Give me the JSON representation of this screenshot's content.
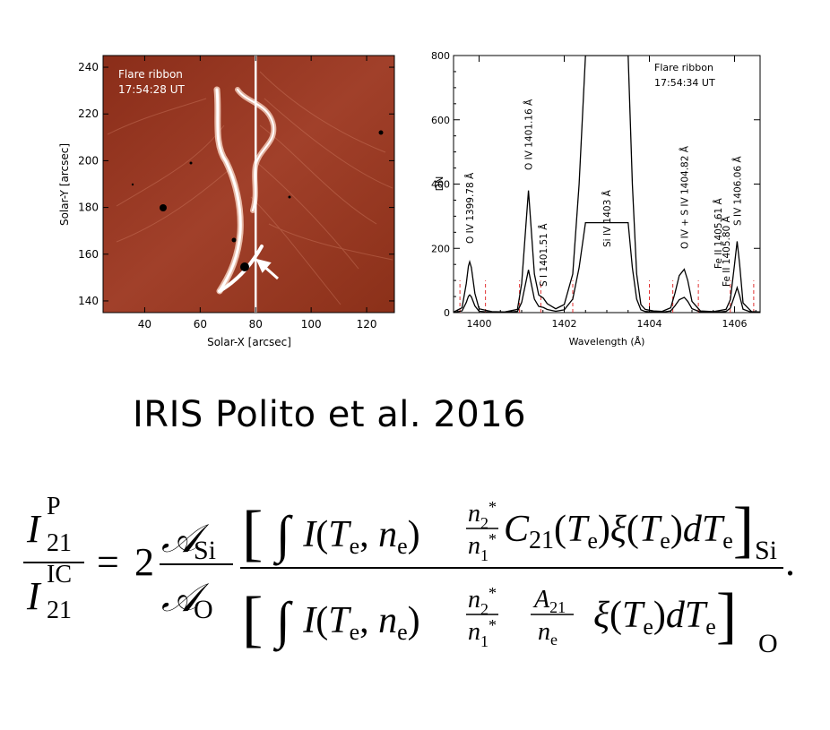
{
  "image_panel": {
    "label_line1": "Flare ribbon",
    "label_line2": "17:54:28 UT",
    "xlabel": "Solar-X [arcsec]",
    "ylabel": "Solar-Y [arcsec]",
    "xticks": [
      40,
      60,
      80,
      100,
      120
    ],
    "yticks": [
      140,
      160,
      180,
      200,
      220,
      240
    ],
    "xlim": [
      25,
      130
    ],
    "ylim": [
      135,
      245
    ],
    "slit_x": 80
  },
  "chart_data": {
    "type": "line",
    "xlabel": "Wavelength (Å)",
    "ylabel": "DN",
    "xlim": [
      1399.4,
      1406.6
    ],
    "ylim": [
      0,
      800
    ],
    "xticks": [
      1400,
      1402,
      1404,
      1406
    ],
    "yticks": [
      0,
      200,
      400,
      600,
      800
    ],
    "label_line1": "Flare ribbon",
    "label_line2": "17:54:34 UT",
    "series": [
      {
        "x": [
          1399.4,
          1399.6,
          1399.7,
          1399.75,
          1399.78,
          1399.82,
          1399.9,
          1400.0,
          1400.3,
          1400.6,
          1400.9,
          1401.0,
          1401.1,
          1401.16,
          1401.22,
          1401.3,
          1401.4,
          1401.51,
          1401.6,
          1401.8,
          1402.0,
          1402.2,
          1402.35,
          1402.5,
          1402.6,
          1402.7,
          1403.4,
          1403.5,
          1403.6,
          1403.7,
          1403.8,
          1403.9,
          1404.1,
          1404.3,
          1404.5,
          1404.6,
          1404.7,
          1404.82,
          1404.9,
          1405.0,
          1405.2,
          1405.5,
          1405.8,
          1405.9,
          1406.0,
          1406.06,
          1406.12,
          1406.2,
          1406.4,
          1406.6
        ],
        "y": [
          2,
          15,
          90,
          145,
          158,
          140,
          60,
          12,
          3,
          2,
          10,
          90,
          270,
          380,
          270,
          120,
          55,
          45,
          28,
          12,
          25,
          120,
          400,
          800,
          800,
          800,
          800,
          800,
          400,
          120,
          25,
          10,
          5,
          4,
          15,
          60,
          115,
          135,
          100,
          35,
          5,
          3,
          10,
          40,
          150,
          222,
          150,
          30,
          3,
          2
        ]
      }
    ],
    "line_labels": [
      {
        "wavelength": 1399.78,
        "text": "O IV  1399.78 Å"
      },
      {
        "wavelength": 1401.16,
        "text": "O IV  1401.16 Å"
      },
      {
        "wavelength": 1401.51,
        "text": "S I  1401.51 Å"
      },
      {
        "wavelength": 1403.0,
        "text": "Si IV  1403 Å"
      },
      {
        "wavelength": 1404.82,
        "text": "O IV + S IV  1404.82 Å"
      },
      {
        "wavelength": 1405.61,
        "text": "Fe II  1405.61 Å"
      },
      {
        "wavelength": 1405.8,
        "text": "Fe II  1405.80 Å"
      },
      {
        "wavelength": 1406.06,
        "text": "S IV  1406.06 Å"
      }
    ],
    "red_dashed_markers": [
      1399.55,
      1400.15,
      1400.95,
      1401.45,
      1402.2,
      1404.0,
      1404.55,
      1405.15,
      1405.9,
      1406.45
    ]
  },
  "caption": "IRIS Polito et al. 2016",
  "formula": {
    "lhs_num": "I",
    "lhs_num_sup": "P",
    "lhs_num_sub": "21",
    "lhs_den": "I",
    "lhs_den_sup": "IC",
    "lhs_den_sub": "21",
    "equals": "=",
    "coef": "2",
    "ratio_num": "𝒜",
    "ratio_num_sub": "Si",
    "ratio_den": "𝒜",
    "ratio_den_sub": "O",
    "big_num": "∫ I(T",
    "big_den": "∫ I(T",
    "subscript_si": "Si",
    "subscript_o": "O",
    "period": "."
  }
}
